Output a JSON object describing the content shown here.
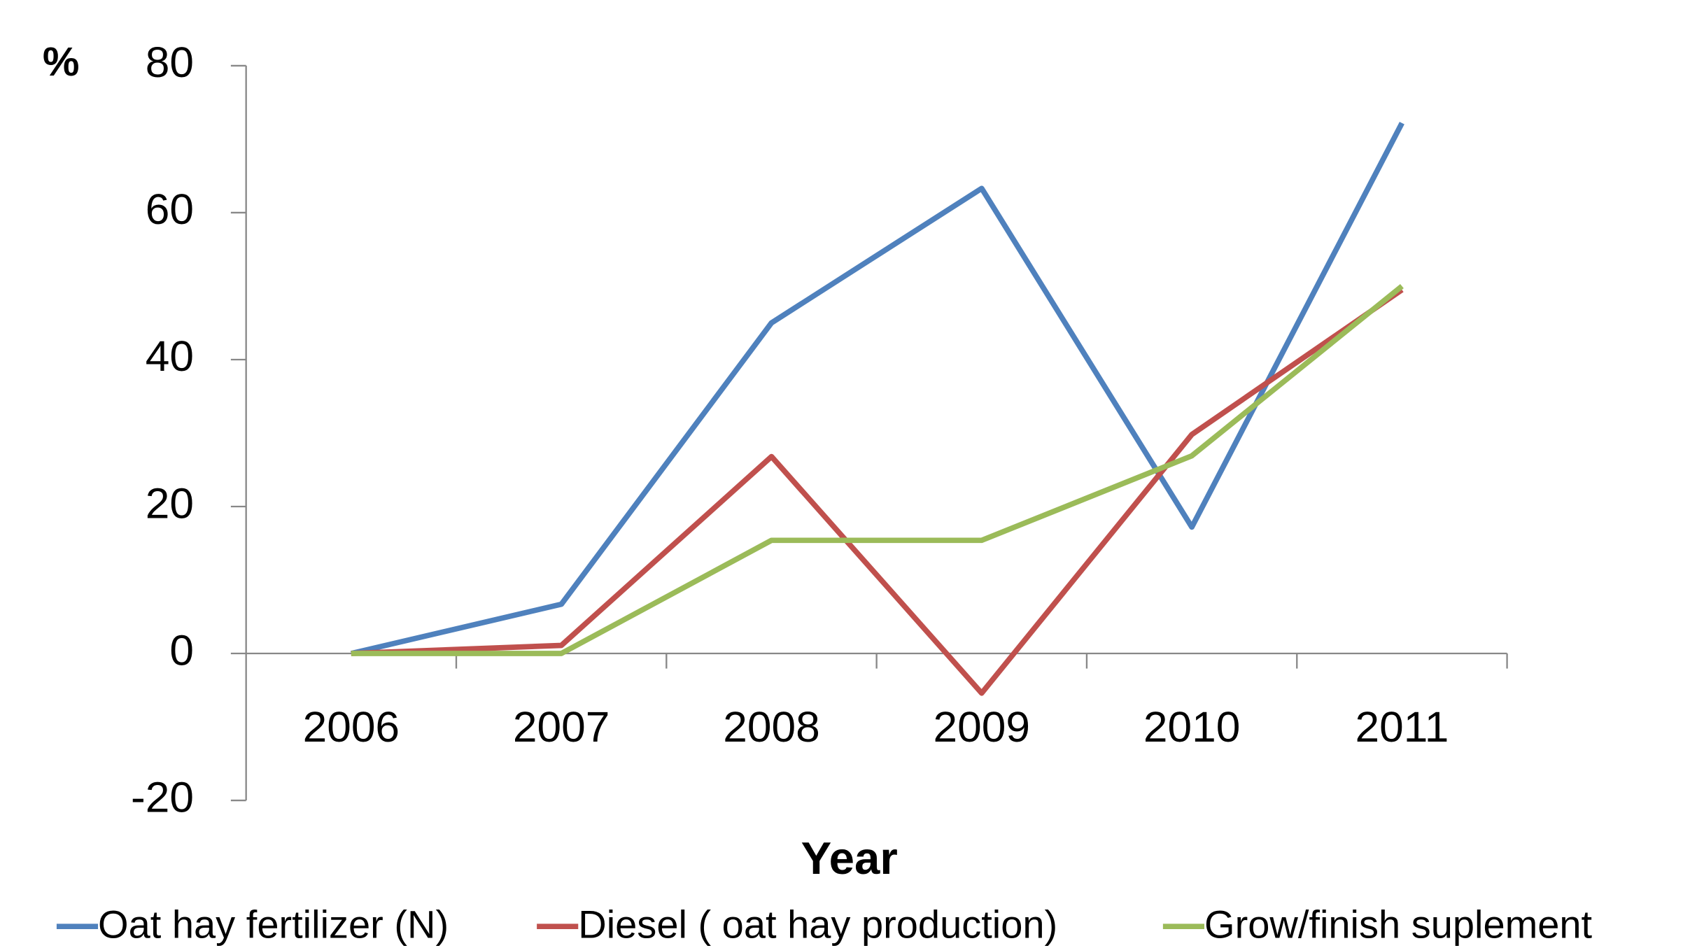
{
  "chart_data": {
    "type": "line",
    "y_axis_label": "%",
    "x_axis_label": "Year",
    "categories": [
      "2006",
      "2007",
      "2008",
      "2009",
      "2010",
      "2011"
    ],
    "series": [
      {
        "name": "Oat hay fertilizer (N)",
        "color": "#4f81bd",
        "values": [
          0,
          6.7,
          45,
          63.3,
          17.2,
          72.2
        ]
      },
      {
        "name": "Diesel ( oat hay production)",
        "color": "#c0504d",
        "values": [
          0,
          1.1,
          26.8,
          -5.4,
          29.8,
          49.5
        ]
      },
      {
        "name": "Grow/finish suplement",
        "color": "#9bbb59",
        "values": [
          0,
          0,
          15.4,
          15.4,
          26.9,
          50
        ]
      }
    ],
    "ylim": [
      -20,
      80
    ],
    "yticks": [
      -20,
      0,
      20,
      40,
      60,
      80
    ],
    "grid": false,
    "legend": "bottom"
  }
}
